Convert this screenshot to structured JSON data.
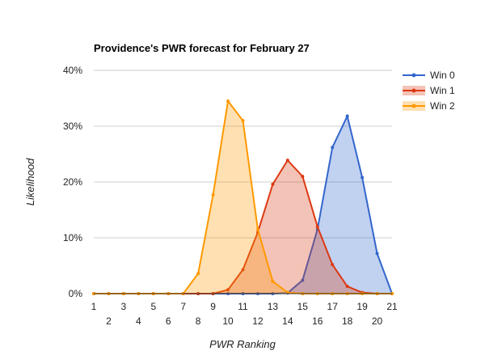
{
  "chart_data": {
    "type": "area",
    "title": "Providence's PWR forecast for February 27",
    "xlabel": "PWR Ranking",
    "ylabel": "Likelihood",
    "x": [
      1,
      2,
      3,
      4,
      5,
      6,
      7,
      8,
      9,
      10,
      11,
      12,
      13,
      14,
      15,
      16,
      17,
      18,
      19,
      20,
      21
    ],
    "xlim": [
      1,
      21
    ],
    "ylim": [
      0,
      40
    ],
    "yticks": [
      "0%",
      "10%",
      "20%",
      "30%",
      "40%"
    ],
    "y_tick_values": [
      0,
      10,
      20,
      30,
      40
    ],
    "grid": true,
    "legend_position": "right",
    "series": [
      {
        "name": "Win 0",
        "color": "#3366cc",
        "values": [
          0,
          0,
          0,
          0,
          0,
          0,
          0,
          0,
          0,
          0,
          0,
          0,
          0,
          0.1,
          2.4,
          11.5,
          26.2,
          31.8,
          20.8,
          7.2,
          0
        ]
      },
      {
        "name": "Win 1",
        "color": "#dc3912",
        "values": [
          0,
          0,
          0,
          0,
          0,
          0,
          0,
          0,
          0,
          0.7,
          4.3,
          11.0,
          19.6,
          23.9,
          21.0,
          12.0,
          5.2,
          1.3,
          0.2,
          0,
          0
        ]
      },
      {
        "name": "Win 2",
        "color": "#ff9900",
        "values": [
          0,
          0,
          0,
          0,
          0,
          0,
          0,
          3.6,
          17.7,
          34.5,
          31.0,
          11.5,
          2.2,
          0.2,
          0,
          0,
          0,
          0,
          0,
          0,
          0
        ]
      }
    ]
  }
}
